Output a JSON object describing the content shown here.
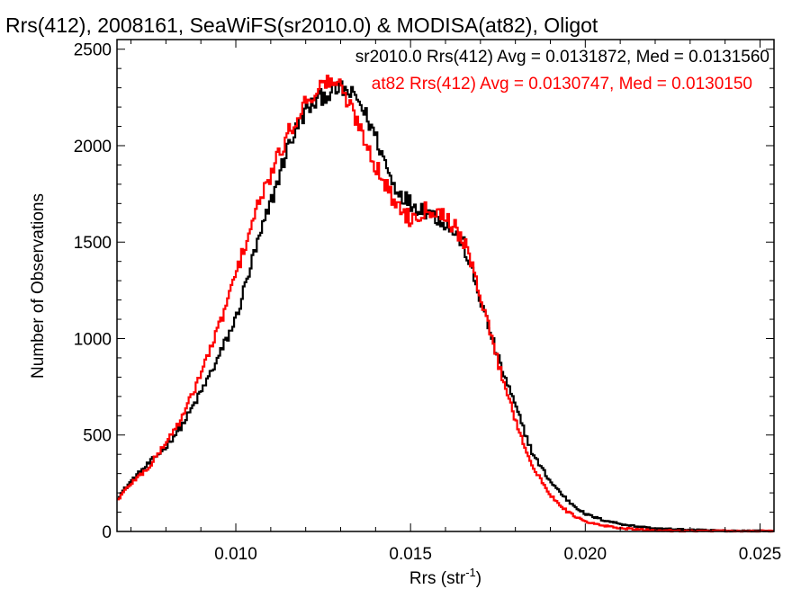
{
  "chart_data": {
    "type": "line",
    "style": "step histogram",
    "title": "Rrs(412), 2008161, SeaWiFS(sr2010.0) & MODISA(at82), Oligot",
    "xlabel": "Rrs (str",
    "xlabel_sup": "-1",
    "xlabel_close": ")",
    "ylabel": "Number of Observations",
    "xlim": [
      0.0066,
      0.0254
    ],
    "ylim": [
      0,
      2550
    ],
    "x_ticks": [
      0.01,
      0.015,
      0.02,
      0.025
    ],
    "x_tick_labels": [
      "0.010",
      "0.015",
      "0.020",
      "0.025"
    ],
    "y_ticks": [
      0,
      500,
      1000,
      1500,
      2000,
      2500
    ],
    "y_tick_labels": [
      "0",
      "500",
      "1000",
      "1500",
      "2000",
      "2500"
    ],
    "grid": false,
    "legend_position": "top-right",
    "series": [
      {
        "name": "sr2010.0",
        "label": "sr2010.0 Rrs(412) Avg = 0.0131872, Med = 0.0131560",
        "color": "#000000",
        "x": [
          0.0066,
          0.007,
          0.0075,
          0.008,
          0.0085,
          0.009,
          0.0095,
          0.01,
          0.0105,
          0.011,
          0.0115,
          0.012,
          0.0125,
          0.0128,
          0.013,
          0.0135,
          0.014,
          0.0145,
          0.015,
          0.0155,
          0.016,
          0.0165,
          0.017,
          0.0175,
          0.018,
          0.0185,
          0.019,
          0.0195,
          0.02,
          0.0205,
          0.021,
          0.0215,
          0.022,
          0.023,
          0.024,
          0.0254
        ],
        "y": [
          170,
          260,
          350,
          440,
          560,
          720,
          900,
          1100,
          1420,
          1700,
          2000,
          2180,
          2260,
          2280,
          2300,
          2240,
          2050,
          1800,
          1700,
          1660,
          1600,
          1500,
          1200,
          900,
          650,
          400,
          260,
          160,
          90,
          60,
          40,
          25,
          15,
          8,
          4,
          2
        ]
      },
      {
        "name": "at82",
        "label": "at82 Rrs(412) Avg = 0.0130747, Med = 0.0130150",
        "color": "#ff0000",
        "x": [
          0.0066,
          0.007,
          0.0075,
          0.008,
          0.0085,
          0.009,
          0.0095,
          0.01,
          0.0105,
          0.011,
          0.0115,
          0.012,
          0.0125,
          0.0128,
          0.013,
          0.0135,
          0.014,
          0.0145,
          0.015,
          0.0155,
          0.016,
          0.0165,
          0.017,
          0.0175,
          0.018,
          0.0185,
          0.019,
          0.0195,
          0.02,
          0.0205,
          0.021,
          0.0215,
          0.022,
          0.023,
          0.024,
          0.0254
        ],
        "y": [
          160,
          250,
          330,
          460,
          600,
          820,
          1050,
          1330,
          1620,
          1850,
          2060,
          2230,
          2320,
          2340,
          2300,
          2120,
          1900,
          1720,
          1620,
          1680,
          1640,
          1520,
          1230,
          880,
          580,
          330,
          190,
          100,
          50,
          30,
          18,
          10,
          5,
          3,
          2,
          1
        ]
      }
    ]
  }
}
